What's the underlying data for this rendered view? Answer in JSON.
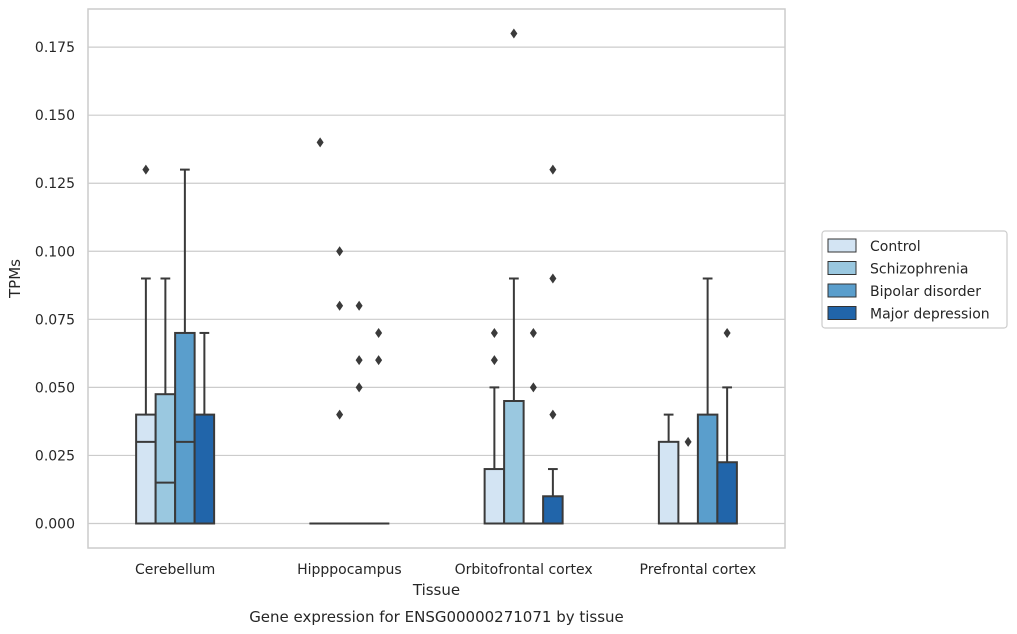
{
  "chart_data": {
    "type": "box",
    "caption": "Gene expression for ENSG00000271071 by tissue",
    "xlabel": "Tissue",
    "ylabel": "TPMs",
    "ylim": [
      -0.009,
      0.189
    ],
    "yticks": [
      "0.000",
      "0.025",
      "0.050",
      "0.075",
      "0.100",
      "0.125",
      "0.150",
      "0.175"
    ],
    "grid": "horizontal",
    "legend_position": "right",
    "categories": [
      "Cerebellum",
      "Hipppocampus",
      "Orbitofrontal cortex",
      "Prefrontal cortex"
    ],
    "series": [
      {
        "name": "Control",
        "color": "#d3e4f3",
        "boxes": [
          {
            "min": 0,
            "q1": 0,
            "median": 0.03,
            "q3": 0.04,
            "max": 0.09,
            "outliers": [
              0.13
            ]
          },
          {
            "min": 0,
            "q1": 0,
            "median": 0,
            "q3": 0,
            "max": 0,
            "outliers": [
              0.14
            ]
          },
          {
            "min": 0,
            "q1": 0,
            "median": 0,
            "q3": 0.02,
            "max": 0.05,
            "outliers": [
              0.06,
              0.07
            ]
          },
          {
            "min": 0,
            "q1": 0,
            "median": 0,
            "q3": 0.03,
            "max": 0.04,
            "outliers": []
          }
        ]
      },
      {
        "name": "Schizophrenia",
        "color": "#9ac8e0",
        "boxes": [
          {
            "min": 0,
            "q1": 0,
            "median": 0.015,
            "q3": 0.0475,
            "max": 0.09,
            "outliers": []
          },
          {
            "min": 0,
            "q1": 0,
            "median": 0,
            "q3": 0,
            "max": 0,
            "outliers": [
              0.04,
              0.08,
              0.1
            ]
          },
          {
            "min": 0,
            "q1": 0,
            "median": 0,
            "q3": 0.045,
            "max": 0.09,
            "outliers": [
              0.18
            ]
          },
          {
            "min": 0,
            "q1": 0,
            "median": 0,
            "q3": 0,
            "max": 0,
            "outliers": [
              0.03
            ]
          }
        ]
      },
      {
        "name": "Bipolar disorder",
        "color": "#5a9ecc",
        "boxes": [
          {
            "min": 0,
            "q1": 0,
            "median": 0.03,
            "q3": 0.07,
            "max": 0.13,
            "outliers": []
          },
          {
            "min": 0,
            "q1": 0,
            "median": 0,
            "q3": 0,
            "max": 0,
            "outliers": [
              0.05,
              0.06,
              0.08
            ]
          },
          {
            "min": 0,
            "q1": 0,
            "median": 0,
            "q3": 0,
            "max": 0,
            "outliers": [
              0.05,
              0.07
            ]
          },
          {
            "min": 0,
            "q1": 0,
            "median": 0,
            "q3": 0.04,
            "max": 0.09,
            "outliers": []
          }
        ]
      },
      {
        "name": "Major depression",
        "color": "#2165aa",
        "boxes": [
          {
            "min": 0,
            "q1": 0,
            "median": 0,
            "q3": 0.04,
            "max": 0.07,
            "outliers": []
          },
          {
            "min": 0,
            "q1": 0,
            "median": 0,
            "q3": 0,
            "max": 0,
            "outliers": [
              0.06,
              0.07
            ]
          },
          {
            "min": 0,
            "q1": 0,
            "median": 0,
            "q3": 0.01,
            "max": 0.02,
            "outliers": [
              0.04,
              0.09,
              0.13
            ]
          },
          {
            "min": 0,
            "q1": 0,
            "median": 0,
            "q3": 0.0225,
            "max": 0.05,
            "outliers": [
              0.07
            ]
          }
        ]
      }
    ]
  }
}
